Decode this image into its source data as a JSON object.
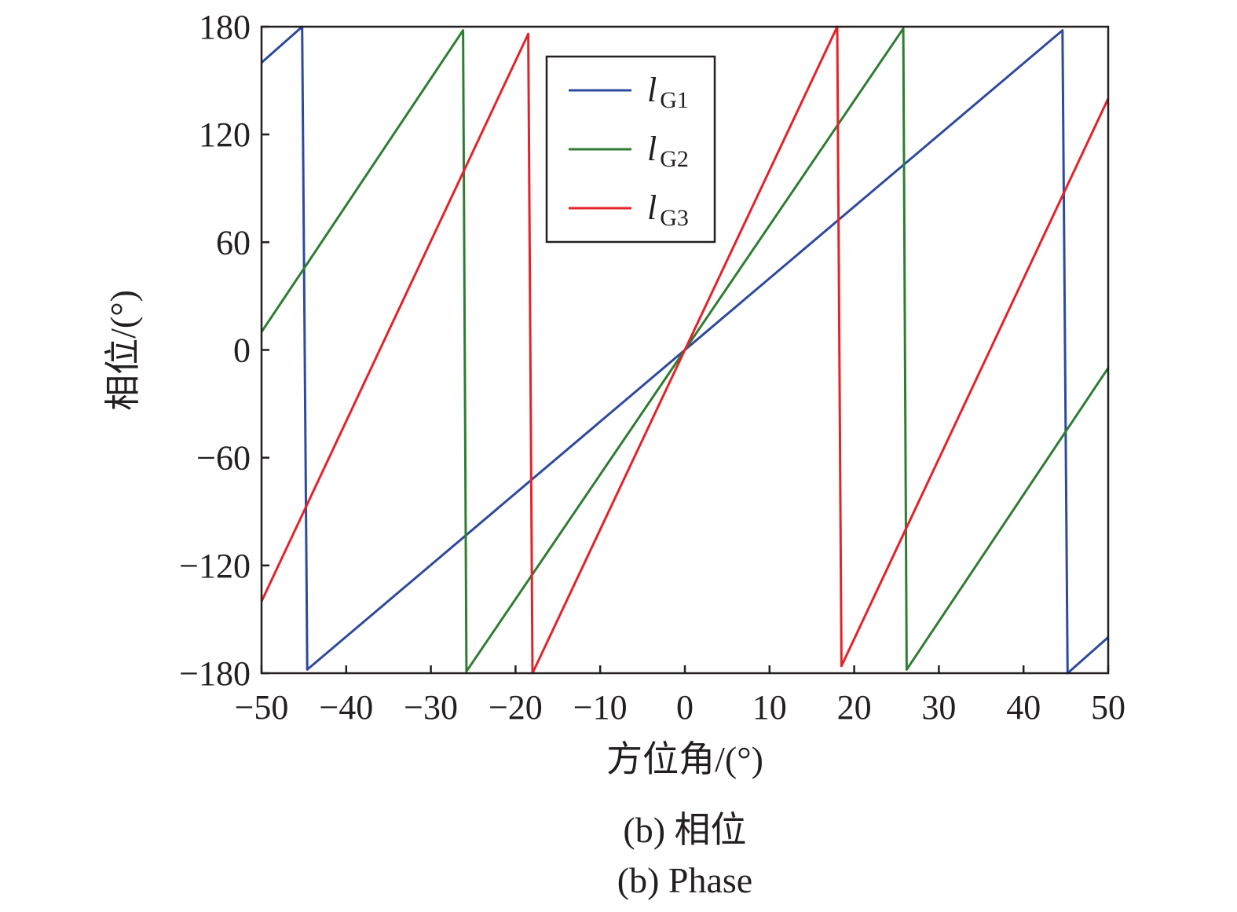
{
  "chart_data": {
    "type": "line",
    "xlabel": "方位角/(°)",
    "ylabel": "相位/(°)",
    "xlim": [
      -50,
      50
    ],
    "ylim": [
      -180,
      180
    ],
    "x_ticks": [
      -50,
      -40,
      -30,
      -20,
      -10,
      0,
      10,
      20,
      30,
      40,
      50
    ],
    "y_ticks": [
      -180,
      -120,
      -60,
      0,
      60,
      120,
      180
    ],
    "x_tick_labels": [
      "−50",
      "−40",
      "−30",
      "−20",
      "−10",
      "0",
      "10",
      "20",
      "30",
      "40",
      "50"
    ],
    "y_tick_labels": [
      "−180",
      "−120",
      "−60",
      "0",
      "60",
      "120",
      "180"
    ],
    "grid": false,
    "legend_position": "top-center",
    "series": [
      {
        "name": "l",
        "name_sub": "G1",
        "color": "#2e4a9c",
        "points": [
          [
            -50,
            160
          ],
          [
            -45.2,
            180
          ],
          [
            -44.6,
            -178
          ],
          [
            0,
            0
          ],
          [
            44.6,
            178
          ],
          [
            45.2,
            -180
          ],
          [
            50,
            -160
          ]
        ]
      },
      {
        "name": "l",
        "name_sub": "G2",
        "color": "#2e7d32",
        "points": [
          [
            -50,
            10
          ],
          [
            -26.2,
            178
          ],
          [
            -25.8,
            -179
          ],
          [
            0,
            0
          ],
          [
            25.8,
            179
          ],
          [
            26.2,
            -178
          ],
          [
            50,
            -10
          ]
        ]
      },
      {
        "name": "l",
        "name_sub": "G3",
        "color": "#e3232a",
        "points": [
          [
            -50,
            -140
          ],
          [
            -18.5,
            176
          ],
          [
            -18,
            -180
          ],
          [
            0,
            0
          ],
          [
            18,
            180
          ],
          [
            18.5,
            -176
          ],
          [
            50,
            140
          ]
        ]
      }
    ]
  },
  "caption": {
    "line1": "(b) 相位",
    "line2": "(b) Phase"
  }
}
